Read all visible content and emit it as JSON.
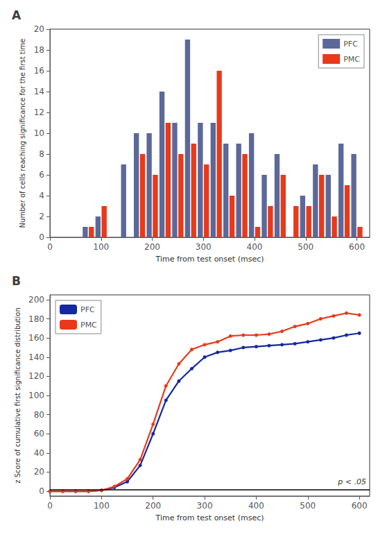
{
  "chart_data": [
    {
      "type": "bar",
      "title": "A",
      "xlabel": "Time from test onset (msec)",
      "ylabel": "Number of cells reaching significance for the first time",
      "xlim": [
        0,
        625
      ],
      "ylim": [
        0,
        20
      ],
      "xticks": [
        0,
        100,
        200,
        300,
        400,
        500,
        600
      ],
      "yticks": [
        0,
        2,
        4,
        6,
        8,
        10,
        12,
        14,
        16,
        18,
        20
      ],
      "x": [
        75,
        100,
        125,
        150,
        175,
        200,
        225,
        250,
        275,
        300,
        325,
        350,
        375,
        400,
        425,
        450,
        475,
        500,
        525,
        550,
        575,
        600
      ],
      "series": [
        {
          "name": "PFC",
          "color": "#5b6899",
          "values": [
            1,
            2,
            0,
            7,
            10,
            10,
            14,
            11,
            19,
            11,
            11,
            9,
            9,
            10,
            6,
            8,
            0,
            4,
            7,
            6,
            9,
            8
          ]
        },
        {
          "name": "PMC",
          "color": "#e8391a",
          "values": [
            1,
            3,
            0,
            0,
            8,
            6,
            11,
            8,
            9,
            7,
            16,
            4,
            8,
            1,
            3,
            6,
            3,
            3,
            6,
            2,
            5,
            1
          ]
        }
      ],
      "legend": "upper right",
      "grid": false
    },
    {
      "type": "line",
      "title": "B",
      "xlabel": "Time from test onset (msec)",
      "ylabel": "z Score of cumulative first significance distribution",
      "xlim": [
        0,
        620
      ],
      "ylim": [
        -5,
        205
      ],
      "xticks": [
        0,
        100,
        200,
        300,
        400,
        500,
        600
      ],
      "yticks": [
        0,
        20,
        40,
        60,
        80,
        100,
        120,
        140,
        160,
        180,
        200
      ],
      "x": [
        0,
        25,
        50,
        75,
        100,
        125,
        150,
        175,
        200,
        225,
        250,
        275,
        300,
        325,
        350,
        375,
        400,
        425,
        450,
        475,
        500,
        525,
        550,
        575,
        600
      ],
      "series": [
        {
          "name": "PFC",
          "color": "#1428a0",
          "marker": "circle",
          "values": [
            0,
            0,
            0,
            0,
            1,
            4,
            10,
            27,
            60,
            95,
            115,
            128,
            140,
            145,
            147,
            150,
            151,
            152,
            153,
            154,
            156,
            158,
            160,
            163,
            165
          ]
        },
        {
          "name": "PMC",
          "color": "#e8391a",
          "marker": "circle",
          "values": [
            0,
            0,
            0,
            0,
            1,
            5,
            13,
            33,
            70,
            110,
            133,
            148,
            153,
            156,
            162,
            163,
            163,
            164,
            167,
            172,
            175,
            180,
            183,
            186,
            184
          ]
        }
      ],
      "threshold": {
        "y": 1.96,
        "label": "p < .05",
        "color": "#000000"
      },
      "legend": "upper left",
      "grid": false
    }
  ]
}
